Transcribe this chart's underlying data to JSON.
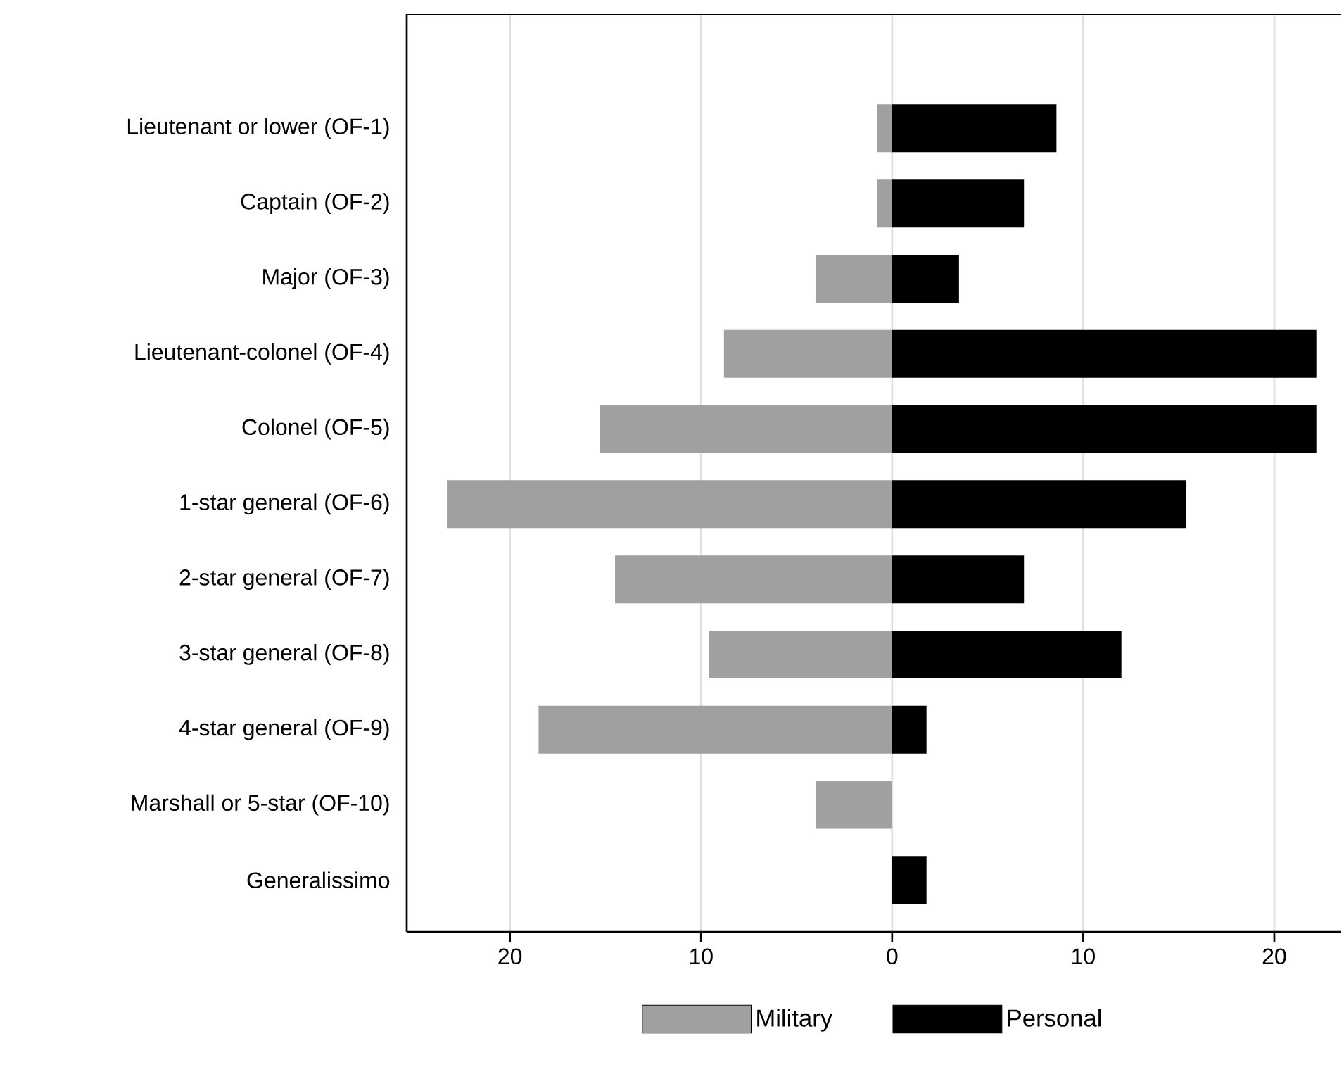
{
  "chart_data": {
    "type": "bar",
    "orientation": "horizontal",
    "categories": [
      "Lieutenant or lower (OF-1)",
      "Captain (OF-2)",
      "Major (OF-3)",
      "Lieutenant-colonel (OF-4)",
      "Colonel (OF-5)",
      "1-star general (OF-6)",
      "2-star general (OF-7)",
      "3-star general (OF-8)",
      "4-star general (OF-9)",
      "Marshall or 5-star (OF-10)",
      "Generalissimo"
    ],
    "series": [
      {
        "name": "Military",
        "color": "#a0a0a0",
        "values": [
          -0.8,
          -0.8,
          -4.0,
          -8.8,
          -15.3,
          -23.3,
          -14.5,
          -9.6,
          -18.5,
          -4.0,
          null
        ]
      },
      {
        "name": "Personal",
        "color": "#000000",
        "values": [
          8.6,
          6.9,
          3.5,
          22.2,
          22.2,
          15.4,
          6.9,
          12.0,
          1.8,
          null,
          1.8
        ]
      }
    ],
    "xlim": [
      -25.4,
      23.5
    ],
    "xticks": [
      {
        "value": -20,
        "label": "20"
      },
      {
        "value": -10,
        "label": "10"
      },
      0,
      10,
      20
    ],
    "grid": "x",
    "legend": "bottom",
    "stacked": true
  }
}
